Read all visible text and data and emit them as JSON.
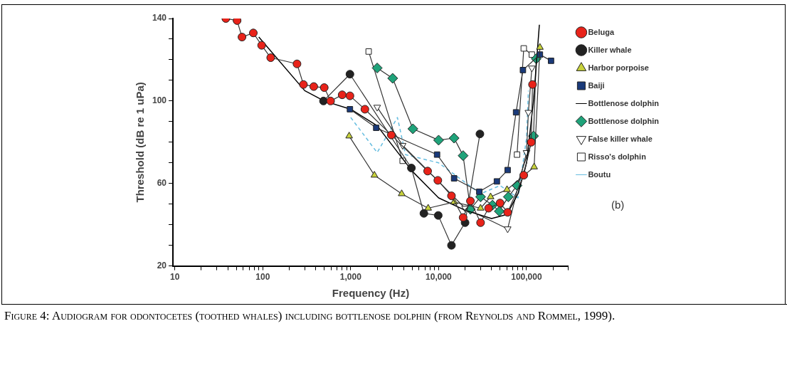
{
  "chart_data": {
    "type": "line",
    "xlabel": "Frequency (Hz)",
    "ylabel": "Threshold (dB re 1 uPa)",
    "log": "x",
    "xlim": [
      9.5,
      300000
    ],
    "ylim": [
      20,
      140
    ],
    "xticks": [
      10,
      {
        "value": 20,
        "label": null
      },
      {
        "value": 30,
        "label": null
      },
      {
        "value": 40,
        "label": null
      },
      {
        "value": 50,
        "label": null
      },
      {
        "value": 60,
        "label": null
      },
      {
        "value": 70,
        "label": null
      },
      {
        "value": 80,
        "label": null
      },
      {
        "value": 90,
        "label": null
      },
      100,
      {
        "value": 200,
        "label": null
      },
      {
        "value": 300,
        "label": null
      },
      {
        "value": 400,
        "label": null
      },
      {
        "value": 500,
        "label": null
      },
      {
        "value": 600,
        "label": null
      },
      {
        "value": 700,
        "label": null
      },
      {
        "value": 800,
        "label": null
      },
      {
        "value": 900,
        "label": null
      },
      {
        "value": 1000,
        "label": "1,000"
      },
      {
        "value": 2000,
        "label": null
      },
      {
        "value": 3000,
        "label": null
      },
      {
        "value": 4000,
        "label": null
      },
      {
        "value": 5000,
        "label": null
      },
      {
        "value": 6000,
        "label": null
      },
      {
        "value": 7000,
        "label": null
      },
      {
        "value": 8000,
        "label": null
      },
      {
        "value": 9000,
        "label": null
      },
      {
        "value": 10000,
        "label": "10,000"
      },
      {
        "value": 20000,
        "label": null
      },
      {
        "value": 30000,
        "label": null
      },
      {
        "value": 40000,
        "label": null
      },
      {
        "value": 50000,
        "label": null
      },
      {
        "value": 60000,
        "label": null
      },
      {
        "value": 70000,
        "label": null
      },
      {
        "value": 80000,
        "label": null
      },
      {
        "value": 90000,
        "label": null
      },
      {
        "value": 100000,
        "label": "100,000"
      },
      {
        "value": 200000,
        "label": null
      },
      {
        "value": 300000,
        "label": null
      }
    ],
    "yticks": [
      20,
      {
        "value": 30,
        "label": null
      },
      {
        "value": 40,
        "label": null
      },
      {
        "value": 50,
        "label": null
      },
      60,
      {
        "value": 70,
        "label": null
      },
      {
        "value": 80,
        "label": null
      },
      {
        "value": 90,
        "label": null
      },
      100,
      {
        "value": 110,
        "label": null
      },
      {
        "value": 120,
        "label": null
      },
      {
        "value": 130,
        "label": null
      },
      140
    ],
    "grid": false,
    "legend": "right",
    "series": [
      {
        "name": "Beluga",
        "color": "#e8231a",
        "marker": "circle",
        "x": [
          38,
          51,
          58,
          78,
          97,
          123,
          245,
          290,
          380,
          500,
          590,
          800,
          980,
          1450,
          2900,
          7500,
          9800,
          14000,
          19000,
          23000,
          30000,
          37000,
          50000,
          61000,
          93000,
          113000,
          117000
        ],
        "values": [
          140,
          139,
          131,
          133,
          127,
          121,
          118,
          108,
          107,
          106.5,
          100,
          103,
          102.5,
          96,
          83.5,
          66,
          61.5,
          54,
          43.5,
          51.5,
          41,
          48,
          50.5,
          46,
          64,
          80,
          108
        ]
      },
      {
        "name": "Killer whale",
        "color": "#222222",
        "marker": "circle",
        "x": [
          490,
          980,
          4900,
          6800,
          9900,
          14000,
          20000,
          29500
        ],
        "values": [
          100,
          113,
          67.5,
          45.5,
          44.5,
          30,
          41,
          84
        ]
      },
      {
        "name": "Harbor porpoise",
        "color": "#c8d23c",
        "marker": "triangle",
        "x": [
          960,
          1860,
          3800,
          7600,
          15000,
          30000,
          39000,
          60000,
          122000,
          142000
        ],
        "values": [
          83,
          64,
          55,
          48,
          51,
          48,
          53.5,
          57,
          68,
          126
        ]
      },
      {
        "name": "Baiji",
        "color": "#1a3a7a",
        "marker": "square",
        "x": [
          980,
          1950,
          9600,
          15000,
          29000,
          46000,
          61000,
          76000,
          91000,
          142000,
          190000
        ],
        "values": [
          96,
          87,
          74,
          62.5,
          56,
          61,
          66.5,
          94.5,
          115,
          122.5,
          119.5
        ]
      },
      {
        "name": "Bottlenose dolphin",
        "color": "#000000",
        "marker": "none",
        "x": [
          90,
          300,
          500,
          1000,
          2000,
          5000,
          10000,
          20000,
          40000,
          60000,
          80000,
          100000,
          120000,
          140000
        ],
        "values": [
          131,
          105,
          100,
          96,
          88,
          66,
          53,
          47,
          43,
          45,
          55,
          70,
          100,
          137
        ]
      },
      {
        "name": "Bottlenose dolphin",
        "color": "#1fa37a",
        "marker": "diamond",
        "x": [
          2000,
          3000,
          5100,
          10000,
          15000,
          19000,
          23000,
          30000,
          41000,
          49000,
          62000,
          78000,
          120000,
          129000
        ],
        "values": [
          116,
          111,
          86.5,
          81,
          82,
          73.5,
          47.5,
          53.5,
          49.5,
          46.5,
          53.5,
          59,
          83,
          120.5
        ]
      },
      {
        "name": "False killer whale",
        "color": "#ffffff",
        "marker": "triangle-down",
        "x": [
          2000,
          3900,
          20000,
          61000,
          100000,
          105000,
          115000
        ],
        "values": [
          97,
          78.5,
          48,
          38,
          75,
          94.5,
          116
        ]
      },
      {
        "name": "Risso's dolphin",
        "color": "#ffffff",
        "marker": "square",
        "x": [
          1600,
          3900,
          30000,
          78000,
          93000,
          115000
        ],
        "values": [
          124,
          71,
          null,
          74,
          125.5,
          122.5
        ]
      },
      {
        "name": "Boutu",
        "color": "#66bde0",
        "marker": "none",
        "line_style": "dashed",
        "x": [
          1000,
          2000,
          3400,
          4200,
          10000,
          30000,
          50000,
          80000,
          100000,
          105000
        ],
        "values": [
          92,
          75,
          92,
          74,
          70,
          55,
          59,
          53,
          82,
          105
        ]
      }
    ],
    "annotations": [
      "(b)",
      "Figure 4: Audiogram for odontocetes (toothed whales) including bottlenose dolphin (from Reynolds and Rommel, 1999)."
    ]
  }
}
